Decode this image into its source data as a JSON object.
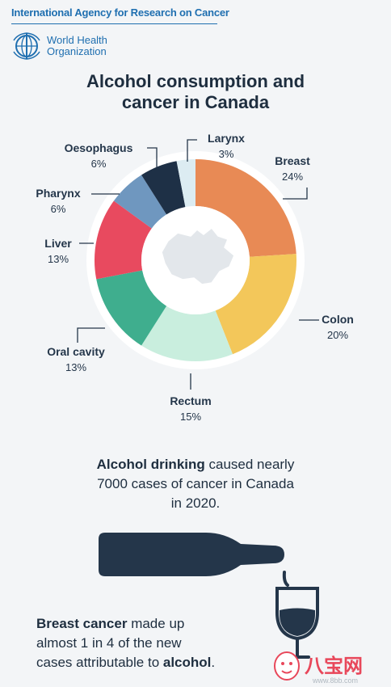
{
  "header": {
    "agency": "International Agency for Research on Cancer",
    "who_line1": "World Health",
    "who_line2": "Organization"
  },
  "title": {
    "line1": "Alcohol consumption and",
    "line2": "cancer in Canada"
  },
  "chart_data": {
    "type": "pie",
    "title": "Alcohol consumption and cancer in Canada",
    "unit": "%",
    "slices": [
      {
        "label": "Breast",
        "value": 24,
        "color": "#e88a55"
      },
      {
        "label": "Colon",
        "value": 20,
        "color": "#f3c75a"
      },
      {
        "label": "Rectum",
        "value": 15,
        "color": "#c9eede"
      },
      {
        "label": "Oral cavity",
        "value": 13,
        "color": "#3fae8e"
      },
      {
        "label": "Liver",
        "value": 13,
        "color": "#e84a5f"
      },
      {
        "label": "Pharynx",
        "value": 6,
        "color": "#6f97bf"
      },
      {
        "label": "Oesophagus",
        "value": 6,
        "color": "#1e3046"
      },
      {
        "label": "Larynx",
        "value": 3,
        "color": "#dcecf2"
      }
    ]
  },
  "stat1": {
    "bold": "Alcohol drinking",
    "rest_line1": " caused nearly",
    "line2": "7000 cases of cancer in Canada",
    "line3": "in 2020."
  },
  "stat2": {
    "bold": "Breast cancer",
    "rest_line1": " made up",
    "line2": "almost 1 in 4 of the new",
    "line3_pre": "cases attributable to ",
    "line3_bold": "alcohol",
    "line3_post": "."
  },
  "watermark": {
    "logo_text": "八宝网",
    "url": "www.8bb.com"
  },
  "icons": [
    "who-logo-icon",
    "canada-map-icon",
    "wine-bottle-icon",
    "wine-glass-icon",
    "watermark-logo-icon"
  ]
}
